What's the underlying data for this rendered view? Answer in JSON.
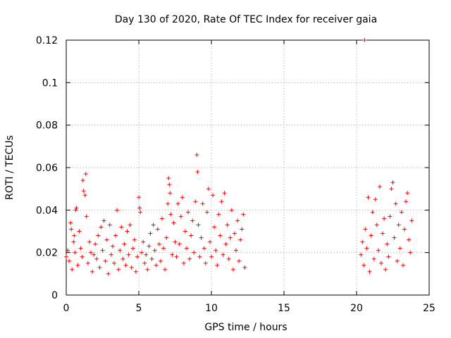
{
  "chart_data": {
    "type": "scatter",
    "title": "Day 130 of 2020, Rate Of TEC Index for receiver gaia",
    "xlabel": "GPS time / hours",
    "ylabel": "ROTI / TECUs",
    "xlim": [
      0,
      25
    ],
    "ylim": [
      0,
      0.12
    ],
    "x_ticks": [
      "0",
      "5",
      "10",
      "15",
      "20",
      "25"
    ],
    "y_ticks": [
      "0",
      "0.02",
      "0.04",
      "0.06",
      "0.08",
      "0.1",
      "0.12"
    ],
    "grid": true,
    "marker": "+",
    "color": "#ff0000",
    "series": [
      {
        "points": [
          [
            0.0,
            0.018
          ],
          [
            0.1,
            0.021
          ],
          [
            0.2,
            0.016
          ],
          [
            0.3,
            0.034
          ],
          [
            0.35,
            0.031
          ],
          [
            0.4,
            0.012
          ],
          [
            0.5,
            0.025
          ],
          [
            0.55,
            0.028
          ],
          [
            0.6,
            0.02
          ],
          [
            0.65,
            0.04
          ],
          [
            0.7,
            0.041
          ],
          [
            0.8,
            0.014
          ],
          [
            0.9,
            0.03
          ],
          [
            1.0,
            0.022
          ],
          [
            1.1,
            0.018
          ],
          [
            1.15,
            0.054
          ],
          [
            1.2,
            0.049
          ],
          [
            1.3,
            0.047
          ],
          [
            1.35,
            0.057
          ],
          [
            1.4,
            0.037
          ],
          [
            1.5,
            0.015
          ],
          [
            1.6,
            0.025
          ],
          [
            1.7,
            0.02
          ],
          [
            1.8,
            0.011
          ],
          [
            1.9,
            0.019
          ],
          [
            2.0,
            0.024
          ],
          [
            2.1,
            0.017
          ],
          [
            2.2,
            0.028
          ],
          [
            2.3,
            0.013
          ],
          [
            2.4,
            0.032
          ],
          [
            2.5,
            0.021
          ],
          [
            2.6,
            0.035
          ],
          [
            2.7,
            0.016
          ],
          [
            2.8,
            0.026
          ],
          [
            2.9,
            0.01
          ],
          [
            3.0,
            0.033
          ],
          [
            3.1,
            0.019
          ],
          [
            3.2,
            0.023
          ],
          [
            3.3,
            0.015
          ],
          [
            3.4,
            0.028
          ],
          [
            3.5,
            0.04
          ],
          [
            3.6,
            0.012
          ],
          [
            3.7,
            0.021
          ],
          [
            3.8,
            0.032
          ],
          [
            3.9,
            0.017
          ],
          [
            4.0,
            0.024
          ],
          [
            4.1,
            0.014
          ],
          [
            4.2,
            0.03
          ],
          [
            4.3,
            0.019
          ],
          [
            4.4,
            0.033
          ],
          [
            4.5,
            0.013
          ],
          [
            4.6,
            0.022
          ],
          [
            4.7,
            0.026
          ],
          [
            4.8,
            0.011
          ],
          [
            4.9,
            0.018
          ],
          [
            5.0,
            0.046
          ],
          [
            5.05,
            0.041
          ],
          [
            5.1,
            0.039
          ],
          [
            5.2,
            0.02
          ],
          [
            5.3,
            0.025
          ],
          [
            5.4,
            0.015
          ],
          [
            5.5,
            0.019
          ],
          [
            5.6,
            0.012
          ],
          [
            5.7,
            0.023
          ],
          [
            5.8,
            0.029
          ],
          [
            5.9,
            0.017
          ],
          [
            6.0,
            0.033
          ],
          [
            6.1,
            0.021
          ],
          [
            6.2,
            0.014
          ],
          [
            6.3,
            0.031
          ],
          [
            6.4,
            0.024
          ],
          [
            6.5,
            0.016
          ],
          [
            6.6,
            0.036
          ],
          [
            6.7,
            0.022
          ],
          [
            6.8,
            0.012
          ],
          [
            6.9,
            0.027
          ],
          [
            7.0,
            0.043
          ],
          [
            7.05,
            0.055
          ],
          [
            7.1,
            0.052
          ],
          [
            7.15,
            0.048
          ],
          [
            7.2,
            0.038
          ],
          [
            7.3,
            0.019
          ],
          [
            7.4,
            0.034
          ],
          [
            7.5,
            0.025
          ],
          [
            7.6,
            0.018
          ],
          [
            7.7,
            0.043
          ],
          [
            7.8,
            0.024
          ],
          [
            7.9,
            0.037
          ],
          [
            8.0,
            0.046
          ],
          [
            8.1,
            0.015
          ],
          [
            8.2,
            0.03
          ],
          [
            8.3,
            0.022
          ],
          [
            8.4,
            0.039
          ],
          [
            8.5,
            0.017
          ],
          [
            8.6,
            0.028
          ],
          [
            8.7,
            0.035
          ],
          [
            8.8,
            0.02
          ],
          [
            8.9,
            0.044
          ],
          [
            9.0,
            0.066
          ],
          [
            9.05,
            0.058
          ],
          [
            9.1,
            0.033
          ],
          [
            9.2,
            0.018
          ],
          [
            9.3,
            0.027
          ],
          [
            9.4,
            0.043
          ],
          [
            9.5,
            0.022
          ],
          [
            9.6,
            0.015
          ],
          [
            9.7,
            0.039
          ],
          [
            9.8,
            0.05
          ],
          [
            9.9,
            0.025
          ],
          [
            10.0,
            0.018
          ],
          [
            10.1,
            0.047
          ],
          [
            10.2,
            0.032
          ],
          [
            10.3,
            0.021
          ],
          [
            10.4,
            0.014
          ],
          [
            10.5,
            0.038
          ],
          [
            10.6,
            0.028
          ],
          [
            10.7,
            0.044
          ],
          [
            10.8,
            0.019
          ],
          [
            10.9,
            0.048
          ],
          [
            11.0,
            0.024
          ],
          [
            11.1,
            0.033
          ],
          [
            11.2,
            0.017
          ],
          [
            11.3,
            0.027
          ],
          [
            11.4,
            0.04
          ],
          [
            11.5,
            0.012
          ],
          [
            11.6,
            0.029
          ],
          [
            11.7,
            0.021
          ],
          [
            11.8,
            0.035
          ],
          [
            11.9,
            0.016
          ],
          [
            12.0,
            0.026
          ],
          [
            12.1,
            0.031
          ],
          [
            12.2,
            0.038
          ],
          [
            12.3,
            0.013
          ],
          [
            20.3,
            0.019
          ],
          [
            20.4,
            0.025
          ],
          [
            20.5,
            0.014
          ],
          [
            20.55,
            0.12
          ],
          [
            20.6,
            0.031
          ],
          [
            20.7,
            0.022
          ],
          [
            20.8,
            0.046
          ],
          [
            20.9,
            0.011
          ],
          [
            21.0,
            0.028
          ],
          [
            21.1,
            0.039
          ],
          [
            21.2,
            0.017
          ],
          [
            21.3,
            0.045
          ],
          [
            21.4,
            0.033
          ],
          [
            21.5,
            0.021
          ],
          [
            21.6,
            0.051
          ],
          [
            21.7,
            0.015
          ],
          [
            21.8,
            0.029
          ],
          [
            21.9,
            0.036
          ],
          [
            22.0,
            0.012
          ],
          [
            22.1,
            0.024
          ],
          [
            22.2,
            0.018
          ],
          [
            22.3,
            0.037
          ],
          [
            22.4,
            0.05
          ],
          [
            22.5,
            0.053
          ],
          [
            22.6,
            0.027
          ],
          [
            22.7,
            0.043
          ],
          [
            22.8,
            0.016
          ],
          [
            22.9,
            0.033
          ],
          [
            23.0,
            0.022
          ],
          [
            23.1,
            0.039
          ],
          [
            23.2,
            0.014
          ],
          [
            23.3,
            0.031
          ],
          [
            23.4,
            0.044
          ],
          [
            23.5,
            0.048
          ],
          [
            23.6,
            0.026
          ],
          [
            23.7,
            0.02
          ],
          [
            23.8,
            0.035
          ]
        ]
      }
    ]
  }
}
